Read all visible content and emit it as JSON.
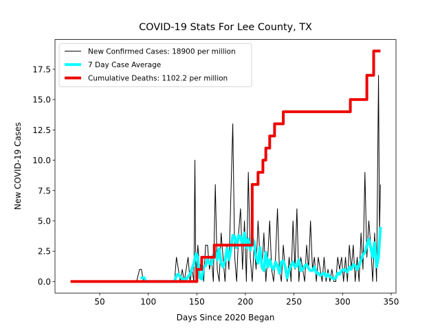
{
  "chart_data": {
    "type": "line",
    "title": "COVID-19 Stats For Lee County, TX",
    "xlabel": "Days Since 2020 Began",
    "ylabel": "New COVID-19 Cases",
    "xlim": [
      4,
      355
    ],
    "ylim": [
      -0.95,
      19.95
    ],
    "xticks": [
      50,
      100,
      150,
      200,
      250,
      300,
      350
    ],
    "yticks": [
      {
        "value": 0,
        "label": "0.0"
      },
      2.5,
      {
        "value": 5,
        "label": "5.0"
      },
      7.5,
      {
        "value": 10,
        "label": "10.0"
      },
      12.5,
      {
        "value": 15,
        "label": "15.0"
      },
      17.5
    ],
    "legend_loc": "upper left",
    "series": [
      {
        "name": "New Confirmed Cases: 18900 per million",
        "color": "#000000",
        "width": 1,
        "x": [
          20,
          88,
          91,
          93,
          95,
          127,
          129,
          131,
          133,
          135,
          137,
          139,
          141,
          143,
          145,
          147,
          148,
          149,
          151,
          153,
          155,
          157,
          159,
          161,
          163,
          165,
          167,
          169,
          171,
          173,
          175,
          177,
          179,
          181,
          183,
          185,
          187,
          189,
          191,
          193,
          195,
          197,
          199,
          201,
          203,
          205,
          207,
          209,
          211,
          213,
          215,
          217,
          219,
          221,
          223,
          225,
          227,
          229,
          231,
          233,
          235,
          237,
          239,
          241,
          243,
          245,
          247,
          249,
          251,
          253,
          255,
          257,
          259,
          261,
          263,
          265,
          267,
          269,
          271,
          273,
          275,
          277,
          279,
          281,
          283,
          285,
          287,
          289,
          291,
          293,
          295,
          297,
          299,
          301,
          303,
          305,
          307,
          309,
          311,
          313,
          315,
          317,
          319,
          321,
          323,
          325,
          327,
          329,
          331,
          333,
          335,
          337,
          338,
          339
        ],
        "values": [
          0,
          0,
          1,
          1,
          0,
          0,
          2,
          1,
          0,
          1,
          0,
          1,
          2,
          0,
          1,
          0,
          10,
          0,
          3,
          1,
          2,
          0,
          3,
          3,
          1,
          2,
          0,
          8,
          1,
          0,
          4,
          2,
          0,
          3,
          1,
          7,
          13,
          2,
          0,
          4,
          6,
          1,
          5,
          0,
          9,
          2,
          0,
          3,
          1,
          5,
          2,
          1,
          4,
          0,
          2,
          5,
          1,
          0,
          2,
          6,
          1,
          0,
          3,
          1,
          0,
          2,
          0,
          5,
          1,
          6,
          0,
          2,
          1,
          0,
          3,
          1,
          5,
          1,
          2,
          0,
          2,
          1,
          0,
          2,
          0,
          1,
          0,
          1,
          0,
          0,
          2,
          1,
          2,
          0,
          2,
          0,
          3,
          1,
          3,
          0,
          2,
          0,
          4,
          1,
          9,
          2,
          5,
          3,
          0,
          4,
          0,
          17,
          4,
          8
        ]
      },
      {
        "name": "7 Day Case Average",
        "color": "#00ffff",
        "width": 4,
        "x": [
          92,
          96,
          97,
          127,
          129,
          131,
          135,
          139,
          143,
          147,
          149,
          151,
          153,
          155,
          157,
          159,
          161,
          163,
          165,
          167,
          169,
          171,
          173,
          175,
          177,
          179,
          181,
          183,
          185,
          187,
          189,
          191,
          193,
          195,
          197,
          199,
          201,
          203,
          205,
          207,
          209,
          211,
          213,
          215,
          217,
          219,
          221,
          223,
          225,
          227,
          229,
          231,
          233,
          235,
          237,
          239,
          241,
          243,
          245,
          247,
          249,
          251,
          253,
          255,
          257,
          259,
          261,
          263,
          265,
          267,
          269,
          271,
          273,
          275,
          277,
          279,
          281,
          283,
          285,
          287,
          289,
          291,
          293,
          295,
          297,
          299,
          301,
          303,
          305,
          307,
          309,
          311,
          313,
          315,
          317,
          319,
          321,
          323,
          325,
          327,
          329,
          331,
          333,
          335,
          337,
          339
        ],
        "values": [
          0.3,
          0.3,
          0,
          0,
          0.5,
          0.6,
          0.2,
          0.2,
          0.6,
          1.5,
          2.3,
          2,
          0.3,
          0.2,
          1.2,
          1.3,
          1.8,
          1.5,
          1.4,
          2.2,
          2.5,
          1.8,
          2.7,
          1.5,
          1.2,
          1.7,
          2.7,
          1.8,
          2.6,
          3.8,
          3.7,
          2.8,
          3.8,
          3.7,
          3,
          4,
          2.8,
          3.5,
          2.6,
          3.6,
          3.2,
          2,
          1.5,
          2.8,
          1.2,
          0.9,
          2.4,
          1.2,
          1.8,
          1.2,
          1,
          1.6,
          1.3,
          0.7,
          1.6,
          1.7,
          1.2,
          0.3,
          1,
          1.3,
          1.6,
          1.2,
          1.3,
          1.8,
          0.9,
          1,
          1.3,
          1.4,
          1.1,
          0.9,
          0.9,
          1.2,
          0.7,
          0.7,
          0.5,
          0.6,
          0.7,
          0.4,
          0.6,
          0.4,
          0.3,
          0.2,
          0.3,
          0.7,
          0.6,
          0.9,
          1,
          0.9,
          0.8,
          1.2,
          1,
          1.4,
          1.3,
          1,
          1.3,
          1.8,
          2.2,
          2.4,
          3,
          3.5,
          2.8,
          2,
          3.2,
          1.2,
          2,
          4.5
        ]
      },
      {
        "name": "Cumulative Deaths: 1102.2 per million",
        "color": "#ee0000",
        "width": 4,
        "x": [
          20,
          150,
          150,
          155,
          155,
          168,
          168,
          207,
          207,
          213,
          213,
          218,
          218,
          221,
          221,
          225,
          225,
          230,
          230,
          239,
          239,
          308,
          308,
          325,
          325,
          332,
          332,
          339
        ],
        "values": [
          0,
          0,
          1,
          1,
          2,
          2,
          3,
          3,
          8,
          8,
          9,
          9,
          10,
          10,
          11,
          11,
          12,
          12,
          13,
          13,
          14,
          14,
          15,
          15,
          17,
          17,
          19,
          19
        ]
      }
    ]
  }
}
